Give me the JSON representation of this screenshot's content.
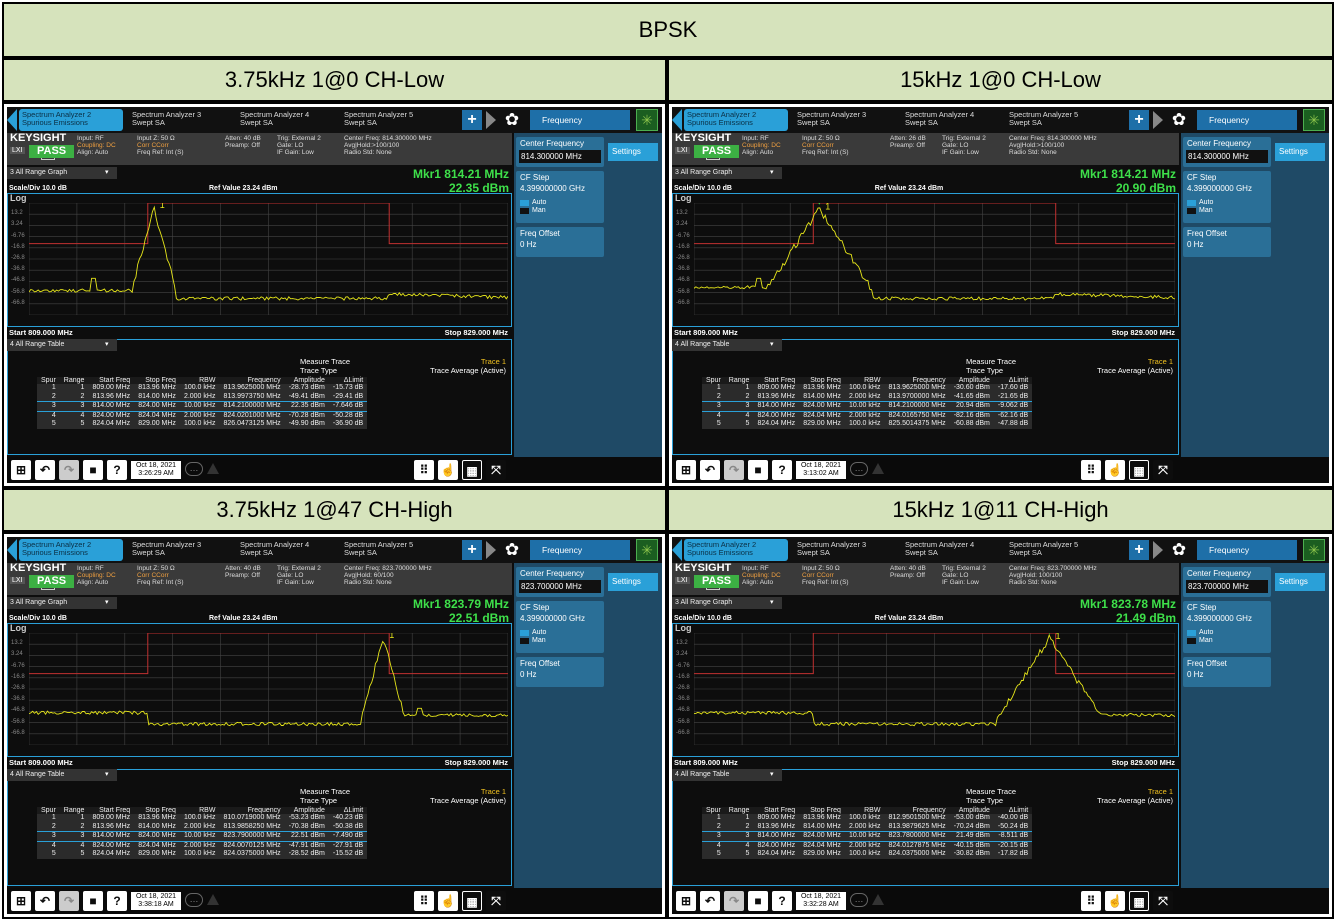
{
  "title": "BPSK",
  "cells": [
    {
      "title": "3.75kHz 1@0 CH-Low",
      "center_freq": "814.300000 MHz",
      "info_center": "Center Freq: 814.300000 MHz",
      "avg_hold": "Avg|Hold:>100/100",
      "atten": "Atten: 40 dB",
      "marker_freq": "Mkr1  814.21 MHz",
      "marker_amp": "22.35 dBm",
      "timestamp": "Oct 18, 2021",
      "time": "3:26:29 AM",
      "peak_x": 814.21,
      "row3_amp": "22.35 dBm",
      "rows": [
        [
          "1",
          "1",
          "809.00 MHz",
          "813.96 MHz",
          "100.0 kHz",
          "813.9625000 MHz",
          "-28.73 dBm",
          "-15.73 dB"
        ],
        [
          "2",
          "2",
          "813.96 MHz",
          "814.00 MHz",
          "2.000 kHz",
          "813.9973750 MHz",
          "-49.41 dBm",
          "-29.41 dB"
        ],
        [
          "3",
          "3",
          "814.00 MHz",
          "824.00 MHz",
          "10.00 kHz",
          "814.2100000 MHz",
          "22.35 dBm",
          "-7.646 dB"
        ],
        [
          "4",
          "4",
          "824.00 MHz",
          "824.04 MHz",
          "2.000 kHz",
          "824.0201000 MHz",
          "-70.28 dBm",
          "-50.28 dB"
        ],
        [
          "5",
          "5",
          "824.04 MHz",
          "829.00 MHz",
          "100.0 kHz",
          "826.0473125 MHz",
          "-49.90 dBm",
          "-36.90 dB"
        ]
      ]
    },
    {
      "title": "15kHz 1@0 CH-Low",
      "center_freq": "814.300000 MHz",
      "info_center": "Center Freq: 814.300000 MHz",
      "avg_hold": "Avg|Hold:>100/100",
      "atten": "Atten: 26 dB",
      "marker_freq": "Mkr1  814.21 MHz",
      "marker_amp": "20.90 dBm",
      "timestamp": "Oct 18, 2021",
      "time": "3:13:02 AM",
      "peak_x": 814.21,
      "row3_amp": "20.94 dBm",
      "rows": [
        [
          "1",
          "1",
          "809.00 MHz",
          "813.96 MHz",
          "100.0 kHz",
          "813.9625000 MHz",
          "-30.60 dBm",
          "-17.60 dB"
        ],
        [
          "2",
          "2",
          "813.96 MHz",
          "814.00 MHz",
          "2.000 kHz",
          "813.9700000 MHz",
          "-41.65 dBm",
          "-21.65 dB"
        ],
        [
          "3",
          "3",
          "814.00 MHz",
          "824.00 MHz",
          "10.00 kHz",
          "814.2100000 MHz",
          "20.94 dBm",
          "-9.062 dB"
        ],
        [
          "4",
          "4",
          "824.00 MHz",
          "824.04 MHz",
          "2.000 kHz",
          "824.0165750 MHz",
          "-82.16 dBm",
          "-62.16 dB"
        ],
        [
          "5",
          "5",
          "824.04 MHz",
          "829.00 MHz",
          "100.0 kHz",
          "825.5014375 MHz",
          "-60.88 dBm",
          "-47.88 dB"
        ]
      ]
    },
    {
      "title": "3.75kHz 1@47 CH-High",
      "center_freq": "823.700000 MHz",
      "info_center": "Center Freq: 823.700000 MHz",
      "avg_hold": "Avg|Hold: 60/100",
      "atten": "Atten: 40 dB",
      "marker_freq": "Mkr1  823.79 MHz",
      "marker_amp": "22.51 dBm",
      "timestamp": "Oct 18, 2021",
      "time": "3:38:18 AM",
      "peak_x": 823.79,
      "row3_amp": "22.51 dBm",
      "rows": [
        [
          "1",
          "1",
          "809.00 MHz",
          "813.96 MHz",
          "100.0 kHz",
          "810.0719000 MHz",
          "-53.23 dBm",
          "-40.23 dB"
        ],
        [
          "2",
          "2",
          "813.96 MHz",
          "814.00 MHz",
          "2.000 kHz",
          "813.9858250 MHz",
          "-70.38 dBm",
          "-50.38 dB"
        ],
        [
          "3",
          "3",
          "814.00 MHz",
          "824.00 MHz",
          "10.00 kHz",
          "823.7900000 MHz",
          "22.51 dBm",
          "-7.490 dB"
        ],
        [
          "4",
          "4",
          "824.00 MHz",
          "824.04 MHz",
          "2.000 kHz",
          "824.0070125 MHz",
          "-47.91 dBm",
          "-27.91 dB"
        ],
        [
          "5",
          "5",
          "824.04 MHz",
          "829.00 MHz",
          "100.0 kHz",
          "824.0375000 MHz",
          "-28.52 dBm",
          "-15.52 dB"
        ]
      ]
    },
    {
      "title": "15kHz 1@11 CH-High",
      "center_freq": "823.700000 MHz",
      "info_center": "Center Freq: 823.700000 MHz",
      "avg_hold": "Avg|Hold: 100/100",
      "atten": "Atten: 40 dB",
      "marker_freq": "Mkr1  823.78 MHz",
      "marker_amp": "21.49 dBm",
      "timestamp": "Oct 18, 2021",
      "time": "3:32:28 AM",
      "peak_x": 823.78,
      "row3_amp": "21.49 dBm",
      "rows": [
        [
          "1",
          "1",
          "809.00 MHz",
          "813.96 MHz",
          "100.0 kHz",
          "812.9501500 MHz",
          "-53.00 dBm",
          "-40.00 dB"
        ],
        [
          "2",
          "2",
          "813.96 MHz",
          "814.00 MHz",
          "2.000 kHz",
          "813.9879625 MHz",
          "-70.24 dBm",
          "-50.24 dB"
        ],
        [
          "3",
          "3",
          "814.00 MHz",
          "824.00 MHz",
          "10.00 kHz",
          "823.7800000 MHz",
          "21.49 dBm",
          "-8.511 dB"
        ],
        [
          "4",
          "4",
          "824.00 MHz",
          "824.04 MHz",
          "2.000 kHz",
          "824.0127875 MHz",
          "-40.15 dBm",
          "-20.15 dB"
        ],
        [
          "5",
          "5",
          "824.04 MHz",
          "829.00 MHz",
          "100.0 kHz",
          "824.0375000 MHz",
          "-30.82 dBm",
          "-17.82 dB"
        ]
      ]
    }
  ],
  "common": {
    "tabs": [
      "Spectrum Analyzer 2\nSpurious Emissions",
      "Spectrum Analyzer 3\nSwept SA",
      "Spectrum Analyzer 4\nSwept SA",
      "Spectrum Analyzer 5\nSwept SA"
    ],
    "frequency_label": "Frequency",
    "settings_label": "Settings",
    "brand": "KEYSIGHT",
    "input": "Input: RF",
    "coupling": "Coupling: DC",
    "align": "Align: Auto",
    "input_z": "Input Z: 50 Ω",
    "corr": "Corr CCorr",
    "freq_ref": "Freq Ref: Int (S)",
    "preamp": "Preamp: Off",
    "trig": "Trig: External 2",
    "gate": "Gate: LO",
    "if_gain": "IF Gain: Low",
    "radio_std": "Radio Std: None",
    "lxi": "LXI",
    "pass": "PASS",
    "graph_title": "3 All Range Graph",
    "table_title": "4 All Range Table",
    "scale": "Scale/Div 10.0 dB",
    "log": "Log",
    "ref_value": "Ref Value 23.24 dBm",
    "y_ticks": [
      "13.2",
      "3.24",
      "-6.76",
      "-16.8",
      "-26.8",
      "-36.8",
      "-46.8",
      "-56.8",
      "-66.8"
    ],
    "start": "Start 809.000 MHz",
    "stop": "Stop 829.000 MHz",
    "cf_label": "Center Frequency",
    "cf_step": "CF Step",
    "cf_step_val": "4.399000000 GHz",
    "auto": "Auto",
    "man": "Man",
    "freq_offset": "Freq Offset",
    "freq_offset_val": "0 Hz",
    "measure_trace": "Measure Trace",
    "trace_type": "Trace Type",
    "trace1": "Trace 1",
    "trace_avg": "Trace Average (Active)",
    "headers": [
      "Spur",
      "Range",
      "Start Freq",
      "Stop Freq",
      "RBW",
      "Frequency",
      "Amplitude",
      "ΔLimit"
    ],
    "marker_num": "1"
  },
  "chart_data": {
    "type": "line",
    "x_range_mhz": [
      809,
      829
    ],
    "y_range_dbm": [
      -76.76,
      23.24
    ],
    "note": "Spectrum traces; marker peaks per cell peak_x"
  }
}
